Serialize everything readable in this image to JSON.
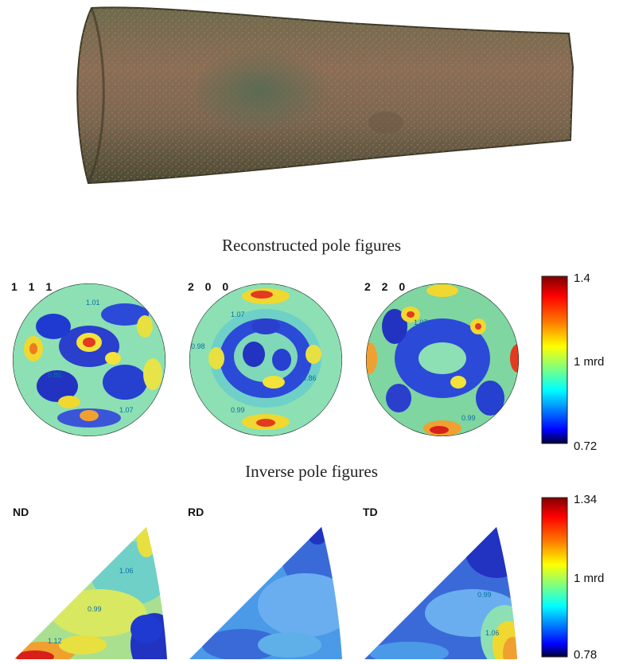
{
  "photo": {
    "subject": "bronze-axe"
  },
  "pole_section": {
    "title": "Reconstructed pole figures",
    "figures": [
      {
        "label": "1 1 1",
        "contours": [
          "1.01",
          "0.86",
          "1.07"
        ]
      },
      {
        "label": "2 0 0",
        "contours": [
          "1.07",
          "0.98",
          "0.99",
          "0.86"
        ]
      },
      {
        "label": "2 2 0",
        "contours": [
          "1.07",
          "0.99"
        ]
      }
    ],
    "colorbar": {
      "max": "1.4",
      "mid": "1 mrd",
      "min": "0.72"
    }
  },
  "inverse_section": {
    "title": "Inverse pole figures",
    "figures": [
      {
        "label": "ND",
        "contours": [
          "1.06",
          "0.99",
          "1.12"
        ]
      },
      {
        "label": "RD",
        "contours": []
      },
      {
        "label": "TD",
        "contours": [
          "0.99",
          "1.06"
        ]
      }
    ],
    "colorbar": {
      "max": "1.34",
      "mid": "1 mrd",
      "min": "0.78"
    }
  },
  "colors": {
    "jet": [
      "#00007f",
      "#0000ff",
      "#007fff",
      "#00ffff",
      "#7fff7f",
      "#ffff00",
      "#ff7f00",
      "#ff0000",
      "#7f0000"
    ],
    "bronze": "#5a5a3a"
  }
}
